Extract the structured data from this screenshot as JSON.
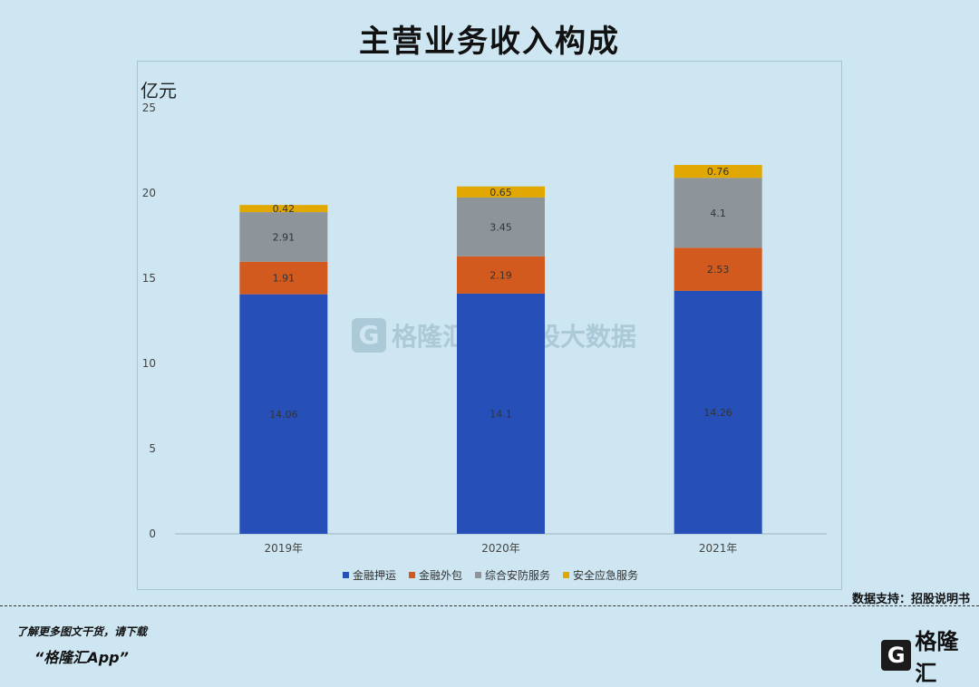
{
  "title": "主营业务收入构成",
  "source_note": "数据支持：招股说明书",
  "footer": {
    "line1": "了解更多图文干货，请下载",
    "line2": "“格隆汇App”"
  },
  "brand": {
    "logo_letter": "G",
    "name": "格隆汇"
  },
  "watermark": {
    "logo_letter": "G",
    "text1": "格隆汇",
    "text2": "招股大数据"
  },
  "colors": {
    "background": "#cde6f2",
    "series_1": "#2650b8",
    "series_2": "#d35a1e",
    "series_3": "#8e959a",
    "series_4": "#e0a800"
  },
  "chart_data": {
    "type": "bar",
    "stacked": true,
    "title": "主营业务收入构成",
    "ylabel": "亿元",
    "ylim": [
      0,
      25
    ],
    "yticks": [
      0,
      5,
      10,
      15,
      20,
      25
    ],
    "categories": [
      "2019年",
      "2020年",
      "2021年"
    ],
    "series": [
      {
        "name": "金融押运",
        "color": "#2650b8",
        "values": [
          14.06,
          14.1,
          14.26
        ],
        "labels": [
          "14.06",
          "14.1",
          "14.26"
        ]
      },
      {
        "name": "金融外包",
        "color": "#d35a1e",
        "values": [
          1.91,
          2.19,
          2.53
        ],
        "labels": [
          "1.91",
          "2.19",
          "2.53"
        ]
      },
      {
        "name": "综合安防服务",
        "color": "#8e959a",
        "values": [
          2.91,
          3.45,
          4.1
        ],
        "labels": [
          "2.91",
          "3.45",
          "4.1"
        ]
      },
      {
        "name": "安全应急服务",
        "color": "#e0a800",
        "values": [
          0.42,
          0.65,
          0.76
        ],
        "labels": [
          "0.42",
          "0.65",
          "0.76"
        ]
      }
    ],
    "legend_position": "bottom",
    "grid": false
  }
}
